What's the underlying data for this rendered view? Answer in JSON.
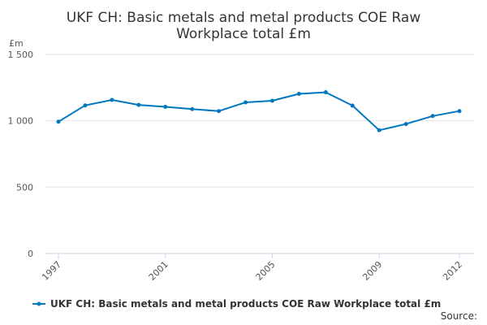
{
  "title_line1": "UKF CH: Basic metals and metal products COE Raw",
  "title_line2": "Workplace total £m",
  "source_label": "Source:",
  "colors": {
    "series": "#0077be",
    "grid": "#e6e6e6",
    "axis": "#ccd6eb",
    "text": "#333333"
  },
  "chart_data": {
    "type": "line",
    "title": "UKF CH: Basic metals and metal products COE Raw Workplace total £m",
    "ylabel": "£m",
    "xlabel": "",
    "ylim": [
      0,
      1500
    ],
    "y_ticks": [
      0,
      500,
      1000,
      1500
    ],
    "y_tick_labels": [
      "0",
      "500",
      "1 000",
      "1 500"
    ],
    "x_tick_years": [
      1997,
      2001,
      2005,
      2009,
      2012
    ],
    "grid": true,
    "legend_position": "bottom",
    "x": [
      1997,
      1998,
      1999,
      2000,
      2001,
      2002,
      2003,
      2004,
      2005,
      2006,
      2007,
      2008,
      2009,
      2010,
      2011,
      2012
    ],
    "series": [
      {
        "name": "UKF CH: Basic metals and metal products COE Raw Workplace total £m",
        "values": [
          993,
          1116,
          1157,
          1120,
          1105,
          1088,
          1073,
          1139,
          1151,
          1203,
          1215,
          1114,
          929,
          976,
          1036,
          1073
        ]
      }
    ]
  }
}
